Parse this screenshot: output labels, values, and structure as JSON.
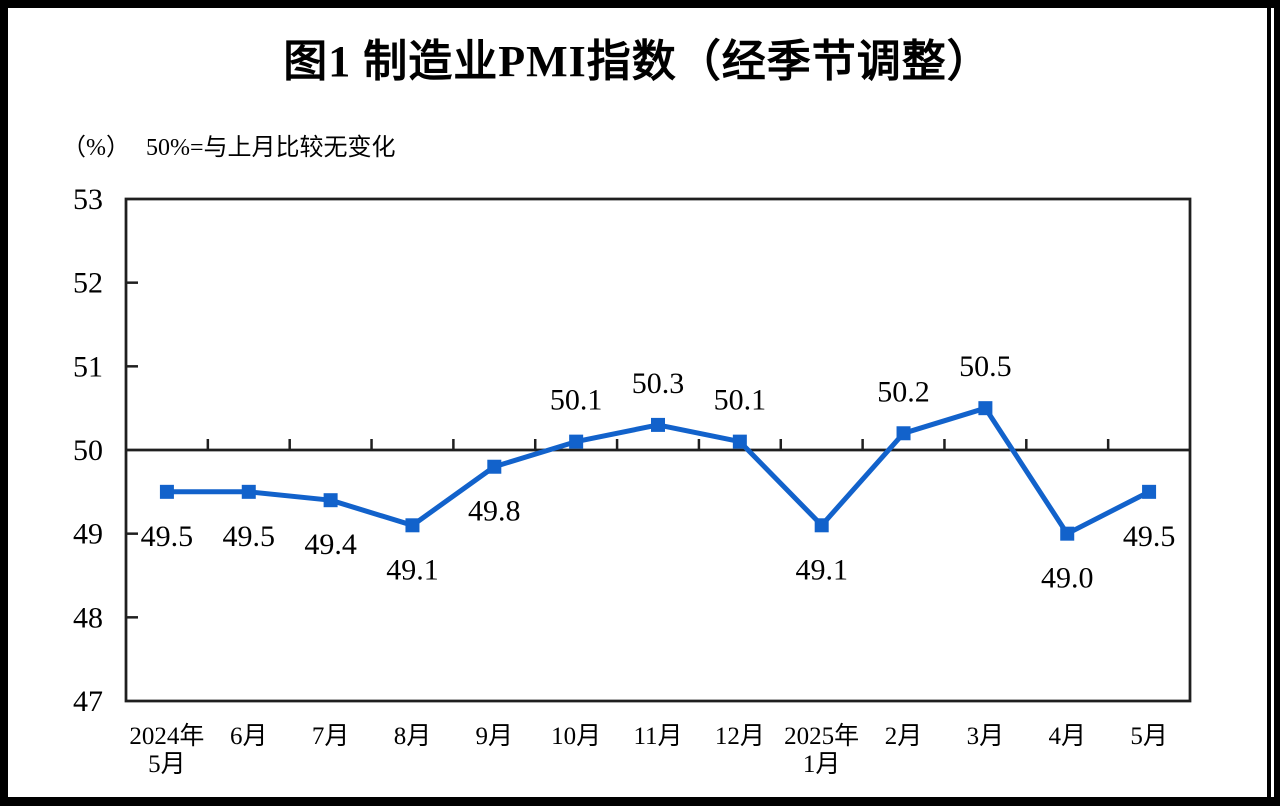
{
  "chart_data": {
    "type": "line",
    "title": "图1  制造业PMI指数（经季节调整）",
    "unit_label": "（%）",
    "note": "50%=与上月比较无变化",
    "ylim": [
      47,
      53
    ],
    "y_ticks": [
      47,
      48,
      49,
      50,
      51,
      52,
      53
    ],
    "reference_line": 50,
    "grid": false,
    "legend": "none",
    "categories": [
      "2024年5月",
      "6月",
      "7月",
      "8月",
      "9月",
      "10月",
      "11月",
      "12月",
      "2025年1月",
      "2月",
      "3月",
      "4月",
      "5月"
    ],
    "category_label_lines": [
      [
        "2024年",
        "5月"
      ],
      [
        "6月"
      ],
      [
        "7月"
      ],
      [
        "8月"
      ],
      [
        "9月"
      ],
      [
        "10月"
      ],
      [
        "11月"
      ],
      [
        "12月"
      ],
      [
        "2025年",
        "1月"
      ],
      [
        "2月"
      ],
      [
        "3月"
      ],
      [
        "4月"
      ],
      [
        "5月"
      ]
    ],
    "values": [
      49.5,
      49.5,
      49.4,
      49.1,
      49.8,
      50.1,
      50.3,
      50.1,
      49.1,
      50.2,
      50.5,
      49.0,
      49.5
    ],
    "data_labels": [
      "49.5",
      "49.5",
      "49.4",
      "49.1",
      "49.8",
      "50.1",
      "50.3",
      "50.1",
      "49.1",
      "50.2",
      "50.5",
      "49.0",
      "49.5"
    ],
    "data_label_positions": [
      "below",
      "below",
      "below",
      "below",
      "below",
      "above",
      "above",
      "above",
      "below",
      "above",
      "above",
      "below",
      "below"
    ],
    "colors": {
      "line": "#1262CB",
      "marker": "#1262CB",
      "axis": "#1f1f1f",
      "label_text": "#000000"
    }
  }
}
